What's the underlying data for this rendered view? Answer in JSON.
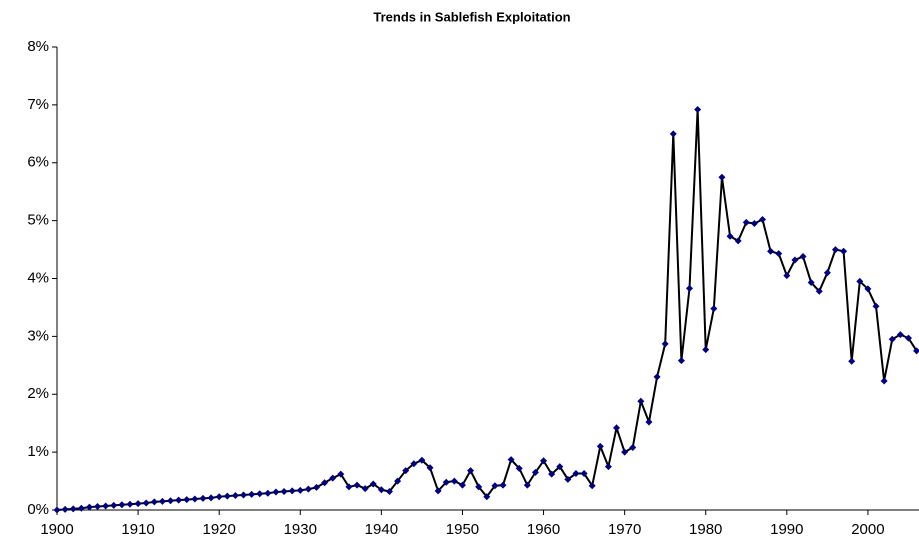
{
  "chart_data": {
    "type": "line",
    "title": "Trends in Sablefish Exploitation",
    "x": [
      1900,
      1901,
      1902,
      1903,
      1904,
      1905,
      1906,
      1907,
      1908,
      1909,
      1910,
      1911,
      1912,
      1913,
      1914,
      1915,
      1916,
      1917,
      1918,
      1919,
      1920,
      1921,
      1922,
      1923,
      1924,
      1925,
      1926,
      1927,
      1928,
      1929,
      1930,
      1931,
      1932,
      1933,
      1934,
      1935,
      1936,
      1937,
      1938,
      1939,
      1940,
      1941,
      1942,
      1943,
      1944,
      1945,
      1946,
      1947,
      1948,
      1949,
      1950,
      1951,
      1952,
      1953,
      1954,
      1955,
      1956,
      1957,
      1958,
      1959,
      1960,
      1961,
      1962,
      1963,
      1964,
      1965,
      1966,
      1967,
      1968,
      1969,
      1970,
      1971,
      1972,
      1973,
      1974,
      1975,
      1976,
      1977,
      1978,
      1979,
      1980,
      1981,
      1982,
      1983,
      1984,
      1985,
      1986,
      1987,
      1988,
      1989,
      1990,
      1991,
      1992,
      1993,
      1994,
      1995,
      1996,
      1997,
      1998,
      1999,
      2000,
      2001,
      2002,
      2003,
      2004,
      2005,
      2006
    ],
    "values": [
      0,
      0.01,
      0.02,
      0.03,
      0.05,
      0.06,
      0.07,
      0.08,
      0.09,
      0.1,
      0.11,
      0.12,
      0.14,
      0.15,
      0.16,
      0.17,
      0.18,
      0.19,
      0.2,
      0.21,
      0.23,
      0.24,
      0.25,
      0.26,
      0.27,
      0.28,
      0.29,
      0.31,
      0.32,
      0.33,
      0.34,
      0.36,
      0.39,
      0.47,
      0.55,
      0.62,
      0.4,
      0.43,
      0.37,
      0.45,
      0.35,
      0.32,
      0.5,
      0.68,
      0.8,
      0.86,
      0.73,
      0.33,
      0.48,
      0.5,
      0.43,
      0.68,
      0.4,
      0.23,
      0.42,
      0.43,
      0.87,
      0.72,
      0.43,
      0.65,
      0.85,
      0.62,
      0.75,
      0.53,
      0.63,
      0.63,
      0.42,
      1.1,
      0.75,
      1.42,
      1.0,
      1.08,
      1.88,
      1.52,
      2.3,
      2.87,
      6.5,
      2.58,
      3.83,
      6.92,
      2.77,
      3.48,
      5.75,
      4.73,
      4.65,
      4.97,
      4.95,
      5.02,
      4.47,
      4.43,
      4.05,
      4.32,
      4.38,
      3.93,
      3.78,
      4.1,
      4.5,
      4.47,
      2.57,
      3.95,
      3.82,
      3.52,
      2.23,
      2.95,
      3.03,
      2.97,
      2.75
    ],
    "line_color": "#000000",
    "marker_color": "#000080",
    "xlim": [
      1900,
      2006.3
    ],
    "xticks": [
      1900,
      1910,
      1920,
      1930,
      1940,
      1950,
      1960,
      1970,
      1980,
      1990,
      2000
    ],
    "ylim": [
      0,
      8
    ],
    "yticks": [
      {
        "value": 0,
        "label": "0%"
      },
      {
        "value": 1,
        "label": "1%"
      },
      {
        "value": 2,
        "label": "2%"
      },
      {
        "value": 3,
        "label": "3%"
      },
      {
        "value": 4,
        "label": "4%"
      },
      {
        "value": 5,
        "label": "5%"
      },
      {
        "value": 6,
        "label": "6%"
      },
      {
        "value": 7,
        "label": "7%"
      },
      {
        "value": 8,
        "label": "8%"
      }
    ]
  }
}
